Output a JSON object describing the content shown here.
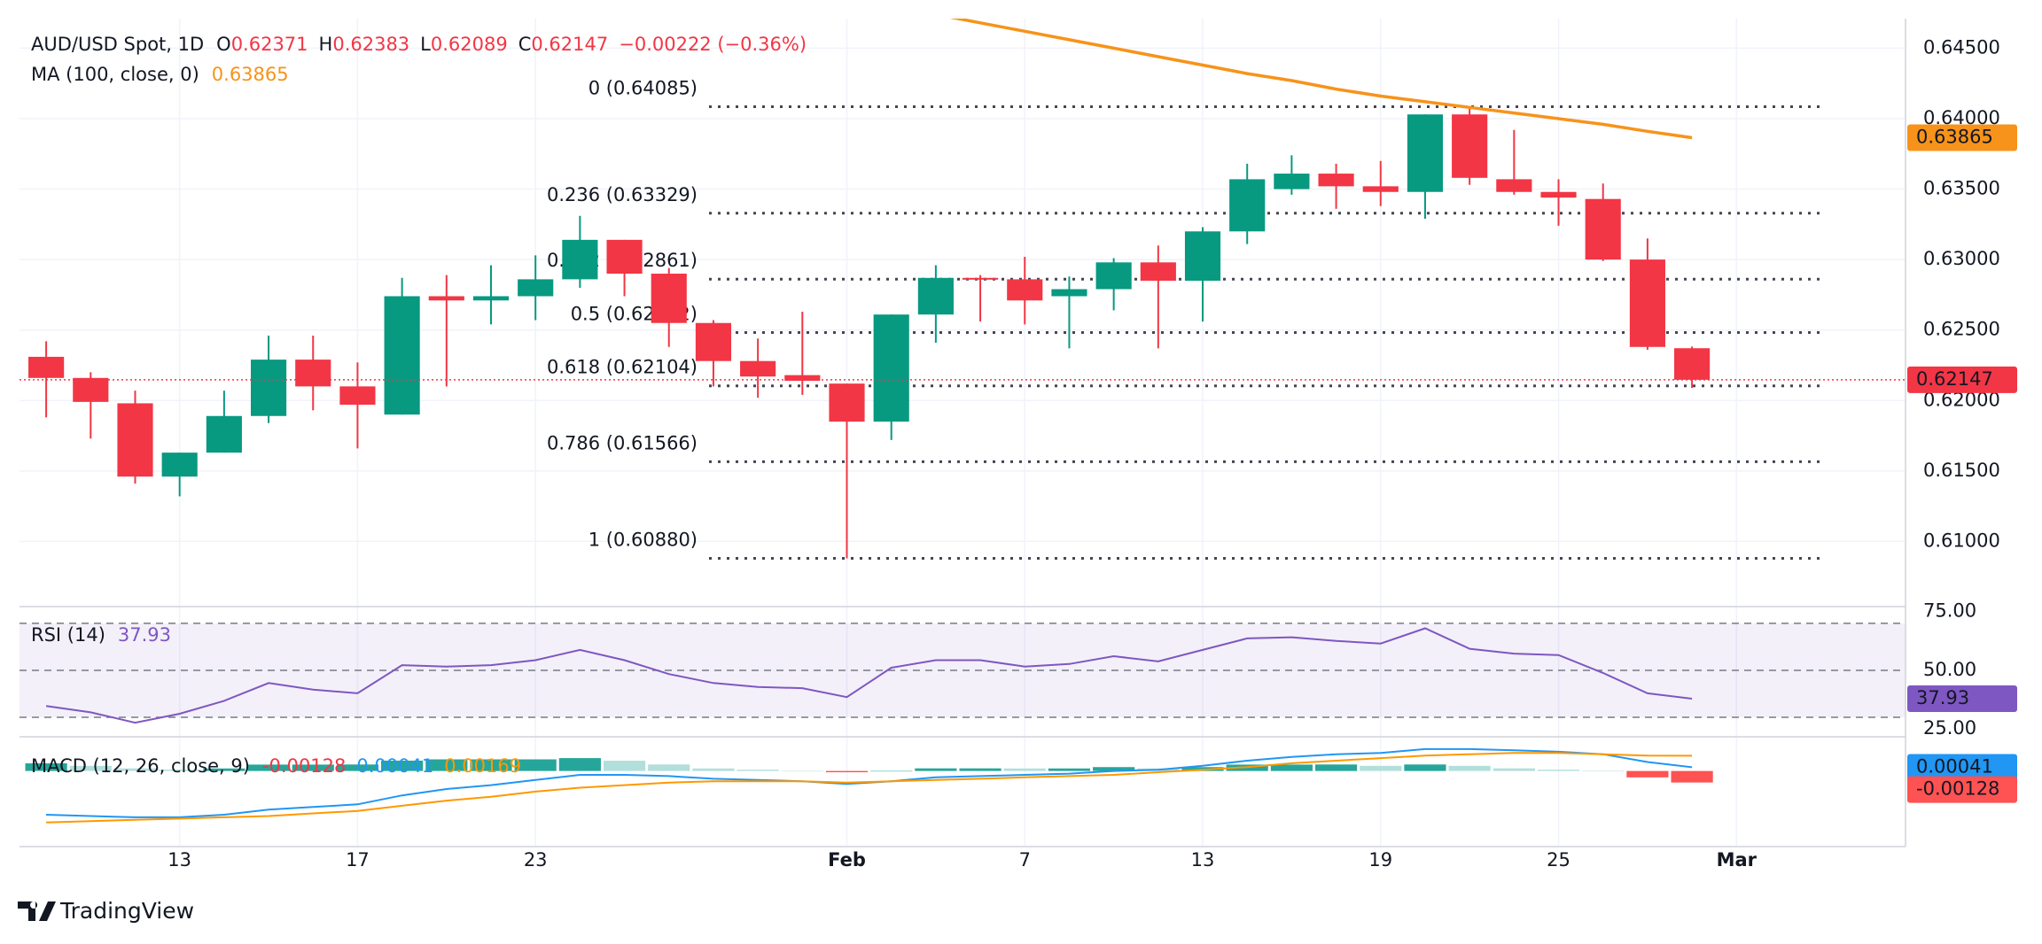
{
  "legend": {
    "keys": [
      "O",
      "H",
      "L",
      "C"
    ],
    "change": "−0.00222 (−0.36%)"
  },
  "footer": {
    "brand": "TradingView"
  },
  "chart_data": [
    {
      "type": "candlestick",
      "title": "AUD/USD Spot, 1D",
      "x": [
        0,
        1,
        2,
        3,
        4,
        5,
        6,
        7,
        8,
        9,
        10,
        11,
        12,
        13,
        14,
        15,
        16,
        17,
        18,
        19,
        20,
        21,
        22,
        23,
        24,
        25,
        26,
        27,
        28,
        29,
        30,
        31,
        32,
        33,
        34,
        35,
        36,
        37
      ],
      "open": [
        0.6231,
        0.6216,
        0.6198,
        0.6146,
        0.6163,
        0.6189,
        0.6229,
        0.621,
        0.619,
        0.6274,
        0.6271,
        0.6274,
        0.6286,
        0.6314,
        0.629,
        0.6255,
        0.6228,
        0.6218,
        0.6212,
        0.6185,
        0.6261,
        0.6287,
        0.6286,
        0.6274,
        0.6279,
        0.6298,
        0.6285,
        0.632,
        0.635,
        0.6361,
        0.6352,
        0.6348,
        0.6403,
        0.6357,
        0.6348,
        0.6343,
        0.63,
        0.62371
      ],
      "high": [
        0.6242,
        0.622,
        0.6207,
        0.6163,
        0.6207,
        0.6246,
        0.6246,
        0.6227,
        0.6287,
        0.6289,
        0.6296,
        0.6303,
        0.6331,
        0.6314,
        0.6294,
        0.6257,
        0.6244,
        0.6263,
        0.6212,
        0.6261,
        0.6296,
        0.6289,
        0.6302,
        0.6288,
        0.6301,
        0.631,
        0.6323,
        0.6368,
        0.6374,
        0.6368,
        0.637,
        0.6403,
        0.64085,
        0.6392,
        0.6357,
        0.6354,
        0.6315,
        0.62383
      ],
      "low": [
        0.6188,
        0.6173,
        0.6141,
        0.6132,
        0.6163,
        0.6184,
        0.6193,
        0.6166,
        0.619,
        0.621,
        0.6254,
        0.6257,
        0.628,
        0.6274,
        0.6238,
        0.621,
        0.6202,
        0.6204,
        0.6088,
        0.6172,
        0.6241,
        0.6256,
        0.6254,
        0.6237,
        0.6264,
        0.6237,
        0.6256,
        0.6311,
        0.6346,
        0.6336,
        0.6338,
        0.6329,
        0.6353,
        0.6346,
        0.6324,
        0.6299,
        0.6236,
        0.62089
      ],
      "close": [
        0.6216,
        0.6199,
        0.6146,
        0.6163,
        0.6189,
        0.6229,
        0.621,
        0.6197,
        0.6274,
        0.6271,
        0.6274,
        0.6286,
        0.6314,
        0.629,
        0.6255,
        0.6228,
        0.6217,
        0.6214,
        0.6185,
        0.6261,
        0.6287,
        0.6286,
        0.6271,
        0.6279,
        0.6298,
        0.6285,
        0.632,
        0.6357,
        0.6361,
        0.6352,
        0.6348,
        0.6403,
        0.6358,
        0.6348,
        0.6344,
        0.63,
        0.6238,
        0.62147
      ],
      "up_color": "#089981",
      "down_color": "#f23645",
      "ma": {
        "name": "MA (100, close, 0)",
        "color": "#f7931a",
        "values": [
          null,
          null,
          null,
          null,
          null,
          null,
          null,
          null,
          null,
          null,
          null,
          null,
          null,
          null,
          null,
          null,
          null,
          null,
          null,
          null,
          0.6474,
          0.6468,
          0.6462,
          0.6456,
          0.645,
          0.6444,
          0.6438,
          0.6432,
          0.6427,
          0.6421,
          0.6416,
          0.6412,
          0.6408,
          0.6404,
          0.64,
          0.6396,
          0.6391,
          0.63865
        ]
      },
      "fib_levels": [
        {
          "value": 0.64085,
          "label": "0 (0.64085)"
        },
        {
          "value": 0.63329,
          "label": "0.236 (0.63329)"
        },
        {
          "value": 0.62861,
          "label": "0.382 (0.62861)"
        },
        {
          "value": 0.62482,
          "label": "0.5 (0.62482)"
        },
        {
          "value": 0.62104,
          "label": "0.618 (0.62104)"
        },
        {
          "value": 0.61566,
          "label": "0.786 (0.61566)"
        },
        {
          "value": 0.6088,
          "label": "1 (0.60880)"
        }
      ],
      "xlim": [
        -0.6,
        41.8
      ],
      "xticks": [
        {
          "value": 3,
          "label": "13"
        },
        {
          "value": 7,
          "label": "17"
        },
        {
          "value": 11,
          "label": "23"
        },
        {
          "value": 18,
          "label": "Feb"
        },
        {
          "value": 22,
          "label": "7"
        },
        {
          "value": 26,
          "label": "13"
        },
        {
          "value": 30,
          "label": "19"
        },
        {
          "value": 34,
          "label": "25"
        },
        {
          "value": 38,
          "label": "Mar"
        }
      ],
      "ylim": [
        0.6055,
        0.6471
      ],
      "yticks": [
        {
          "value": 0.61,
          "label": "0.61000"
        },
        {
          "value": 0.615,
          "label": "0.61500"
        },
        {
          "value": 0.62,
          "label": "0.62000"
        },
        {
          "value": 0.625,
          "label": "0.62500"
        },
        {
          "value": 0.63,
          "label": "0.63000"
        },
        {
          "value": 0.635,
          "label": "0.63500"
        },
        {
          "value": 0.64,
          "label": "0.64000"
        },
        {
          "value": 0.645,
          "label": "0.64500"
        }
      ],
      "grid": true
    },
    {
      "type": "line",
      "title": "RSI (14)",
      "series": [
        {
          "color": "#7e57c2",
          "values": [
            34.8,
            32.1,
            27.7,
            31.5,
            37.0,
            44.6,
            41.8,
            40.2,
            52.2,
            51.6,
            52.2,
            54.3,
            58.7,
            54.3,
            48.4,
            44.6,
            42.9,
            42.4,
            38.6,
            51.1,
            54.3,
            54.3,
            51.6,
            52.7,
            56.0,
            53.8,
            58.7,
            63.6,
            64.1,
            62.5,
            61.4,
            67.9,
            59.2,
            57.1,
            56.5,
            48.9,
            40.2,
            37.93
          ]
        }
      ],
      "ylim": [
        21.7,
        76
      ],
      "yticks": [
        {
          "value": 25,
          "label": "25.00"
        },
        {
          "value": 50,
          "label": "50.00"
        },
        {
          "value": 75,
          "label": "75.00"
        }
      ],
      "levels": [
        30,
        50,
        70
      ],
      "band_color": "#7e57c2"
    },
    {
      "type": "macd",
      "title": "MACD (12, 26, close, 9)",
      "macd": {
        "color": "#2196f3",
        "values": [
          -0.00486,
          -0.005,
          -0.00514,
          -0.00514,
          -0.00486,
          -0.00429,
          -0.004,
          -0.00371,
          -0.00271,
          -0.002,
          -0.00157,
          -0.001,
          -0.00043,
          -0.00043,
          -0.00057,
          -0.00086,
          -0.001,
          -0.00114,
          -0.00143,
          -0.00114,
          -0.00071,
          -0.00057,
          -0.00043,
          -0.00029,
          0,
          0.00014,
          0.00057,
          0.00114,
          0.00157,
          0.00186,
          0.002,
          0.00243,
          0.00243,
          0.00229,
          0.00214,
          0.00186,
          0.001,
          0.00041
        ]
      },
      "signal": {
        "color": "#ff9800",
        "values": [
          -0.00571,
          -0.00557,
          -0.00543,
          -0.00529,
          -0.00514,
          -0.005,
          -0.00471,
          -0.00443,
          -0.00386,
          -0.00329,
          -0.00286,
          -0.00229,
          -0.00186,
          -0.00157,
          -0.00129,
          -0.00114,
          -0.00114,
          -0.00114,
          -0.00129,
          -0.00114,
          -0.001,
          -0.00086,
          -0.00071,
          -0.00057,
          -0.00043,
          -0.00014,
          0.00014,
          0.00043,
          0.00086,
          0.00114,
          0.00143,
          0.00171,
          0.00186,
          0.002,
          0.002,
          0.00186,
          0.00171,
          0.00169
        ]
      },
      "histogram": {
        "colors": [
          "#26a69a",
          "#b2dfdb",
          "#ffcdd2",
          "#ff5252"
        ],
        "values": [
          0.00085,
          0.00057,
          0.00029,
          0.00015,
          0.00028,
          0.00071,
          0.00071,
          0.00072,
          0.00115,
          0.00129,
          0.00129,
          0.00129,
          0.00143,
          0.00114,
          0.00072,
          0.00028,
          0.00014,
          0,
          -0.00014,
          0,
          0.00029,
          0.00029,
          0.00028,
          0.00028,
          0.00043,
          0.00028,
          0.00043,
          0.00071,
          0.00071,
          0.00072,
          0.00057,
          0.00072,
          0.00057,
          0.00029,
          0.00014,
          0,
          -0.00071,
          -0.00128
        ]
      },
      "ylim": [
        -0.0083,
        0.0037
      ]
    }
  ]
}
